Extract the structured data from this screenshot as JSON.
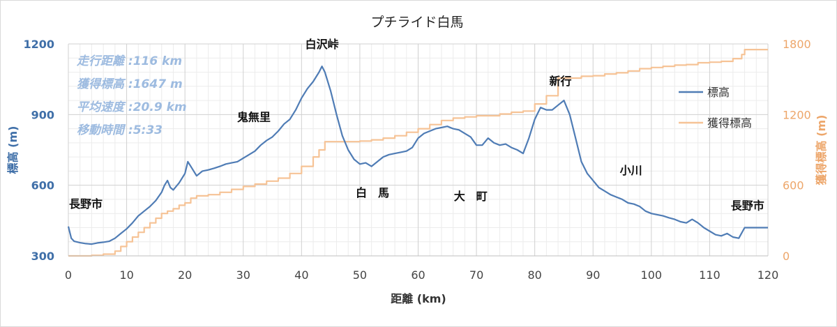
{
  "chart_data": {
    "type": "line",
    "title": "プチライド白馬",
    "xlabel": "距離 (km)",
    "ylabel_left": "標高 (m)",
    "ylabel_right": "獲得標高 (m)",
    "xlim": [
      0,
      120
    ],
    "ylim_left": [
      300,
      1200
    ],
    "ylim_right": [
      0,
      1800
    ],
    "x_ticks": [
      0,
      10,
      20,
      30,
      40,
      50,
      60,
      70,
      80,
      90,
      100,
      110,
      120
    ],
    "y_left_ticks": [
      300,
      600,
      900,
      1200
    ],
    "y_right_ticks": [
      0,
      600,
      1200,
      1800
    ],
    "grid": true,
    "legend_position": "right",
    "colors": {
      "elevation": "#4f7cb5",
      "gain": "#f6c396",
      "axis_left": "#3f6fa8",
      "axis_right": "#eda66a",
      "stats": "#9dbbe0"
    },
    "series": [
      {
        "name": "標高",
        "axis": "left",
        "x": [
          0,
          0.5,
          1,
          2,
          3,
          4,
          5,
          6,
          7,
          8,
          9,
          10,
          11,
          12,
          13,
          14,
          15,
          16,
          16.5,
          17,
          17.5,
          18,
          19,
          20,
          20.5,
          21,
          22,
          23,
          24,
          25,
          26,
          27,
          28,
          29,
          30,
          31,
          32,
          33,
          34,
          35,
          36,
          37,
          38,
          39,
          40,
          41,
          42,
          43,
          43.5,
          44,
          45,
          46,
          47,
          48,
          49,
          50,
          51,
          52,
          53,
          54,
          55,
          56,
          57,
          58,
          59,
          60,
          61,
          62,
          63,
          64,
          65,
          66,
          67,
          68,
          69,
          70,
          71,
          72,
          73,
          74,
          75,
          76,
          77,
          78,
          79,
          80,
          81,
          82,
          83,
          84,
          85,
          86,
          87,
          88,
          89,
          90,
          91,
          92,
          93,
          94,
          95,
          96,
          97,
          98,
          99,
          100,
          101,
          102,
          103,
          104,
          105,
          106,
          107,
          108,
          109,
          110,
          111,
          112,
          113,
          114,
          115,
          116,
          117,
          118,
          119,
          120
        ],
        "values": [
          425,
          375,
          362,
          356,
          352,
          350,
          355,
          358,
          362,
          375,
          395,
          415,
          440,
          470,
          490,
          510,
          535,
          570,
          600,
          620,
          590,
          580,
          610,
          650,
          700,
          680,
          640,
          660,
          665,
          672,
          680,
          690,
          695,
          700,
          715,
          730,
          745,
          770,
          790,
          805,
          830,
          860,
          880,
          920,
          970,
          1010,
          1040,
          1080,
          1105,
          1080,
          1000,
          900,
          810,
          750,
          710,
          690,
          695,
          680,
          700,
          720,
          730,
          735,
          740,
          745,
          760,
          800,
          820,
          830,
          840,
          845,
          850,
          840,
          835,
          820,
          805,
          770,
          770,
          800,
          780,
          770,
          775,
          760,
          750,
          735,
          800,
          880,
          930,
          920,
          920,
          940,
          960,
          900,
          800,
          700,
          650,
          620,
          590,
          575,
          560,
          550,
          540,
          525,
          520,
          510,
          490,
          480,
          475,
          470,
          462,
          455,
          445,
          440,
          455,
          440,
          420,
          405,
          390,
          385,
          395,
          380,
          375,
          420,
          420,
          420,
          420,
          420
        ]
      },
      {
        "name": "獲得標高",
        "axis": "right",
        "x": [
          0,
          4,
          6,
          8,
          9,
          10,
          11,
          12,
          13,
          14,
          15,
          16,
          17,
          18,
          19,
          20,
          21,
          22,
          24,
          26,
          28,
          30,
          32,
          34,
          36,
          38,
          40,
          42,
          43,
          44,
          46,
          48,
          50,
          52,
          54,
          56,
          58,
          60,
          62,
          64,
          66,
          68,
          70,
          72,
          74,
          76,
          78,
          80,
          82,
          84,
          86,
          88,
          90,
          92,
          94,
          96,
          98,
          100,
          102,
          104,
          106,
          108,
          110,
          112,
          114,
          115.5,
          116,
          118,
          120
        ],
        "values": [
          0,
          5,
          15,
          40,
          80,
          120,
          160,
          200,
          240,
          280,
          320,
          360,
          380,
          400,
          430,
          450,
          490,
          510,
          520,
          540,
          565,
          590,
          610,
          635,
          660,
          700,
          760,
          840,
          900,
          970,
          970,
          970,
          975,
          985,
          1000,
          1020,
          1050,
          1080,
          1115,
          1150,
          1170,
          1180,
          1190,
          1190,
          1205,
          1220,
          1230,
          1290,
          1360,
          1510,
          1510,
          1525,
          1530,
          1545,
          1555,
          1570,
          1590,
          1600,
          1610,
          1620,
          1625,
          1640,
          1645,
          1652,
          1675,
          1710,
          1752,
          1752,
          1752
        ]
      }
    ],
    "stats": [
      "走行距離 :116 km",
      "獲得標高 :1647 m",
      "平均速度 :20.9 km",
      "移動時間 :5:33"
    ],
    "annotations": [
      {
        "text": "長野市",
        "x": 0,
        "y": 425
      },
      {
        "text": "鬼無里",
        "x": 33,
        "y": 790
      },
      {
        "text": "白沢峠",
        "x": 43.5,
        "y": 1105
      },
      {
        "text": "白　馬",
        "x": 53,
        "y": 640
      },
      {
        "text": "大　町",
        "x": 69,
        "y": 640
      },
      {
        "text": "新行",
        "x": 85,
        "y": 960
      },
      {
        "text": "小川",
        "x": 96.5,
        "y": 575
      },
      {
        "text": "長野市",
        "x": 116.5,
        "y": 420
      }
    ]
  }
}
